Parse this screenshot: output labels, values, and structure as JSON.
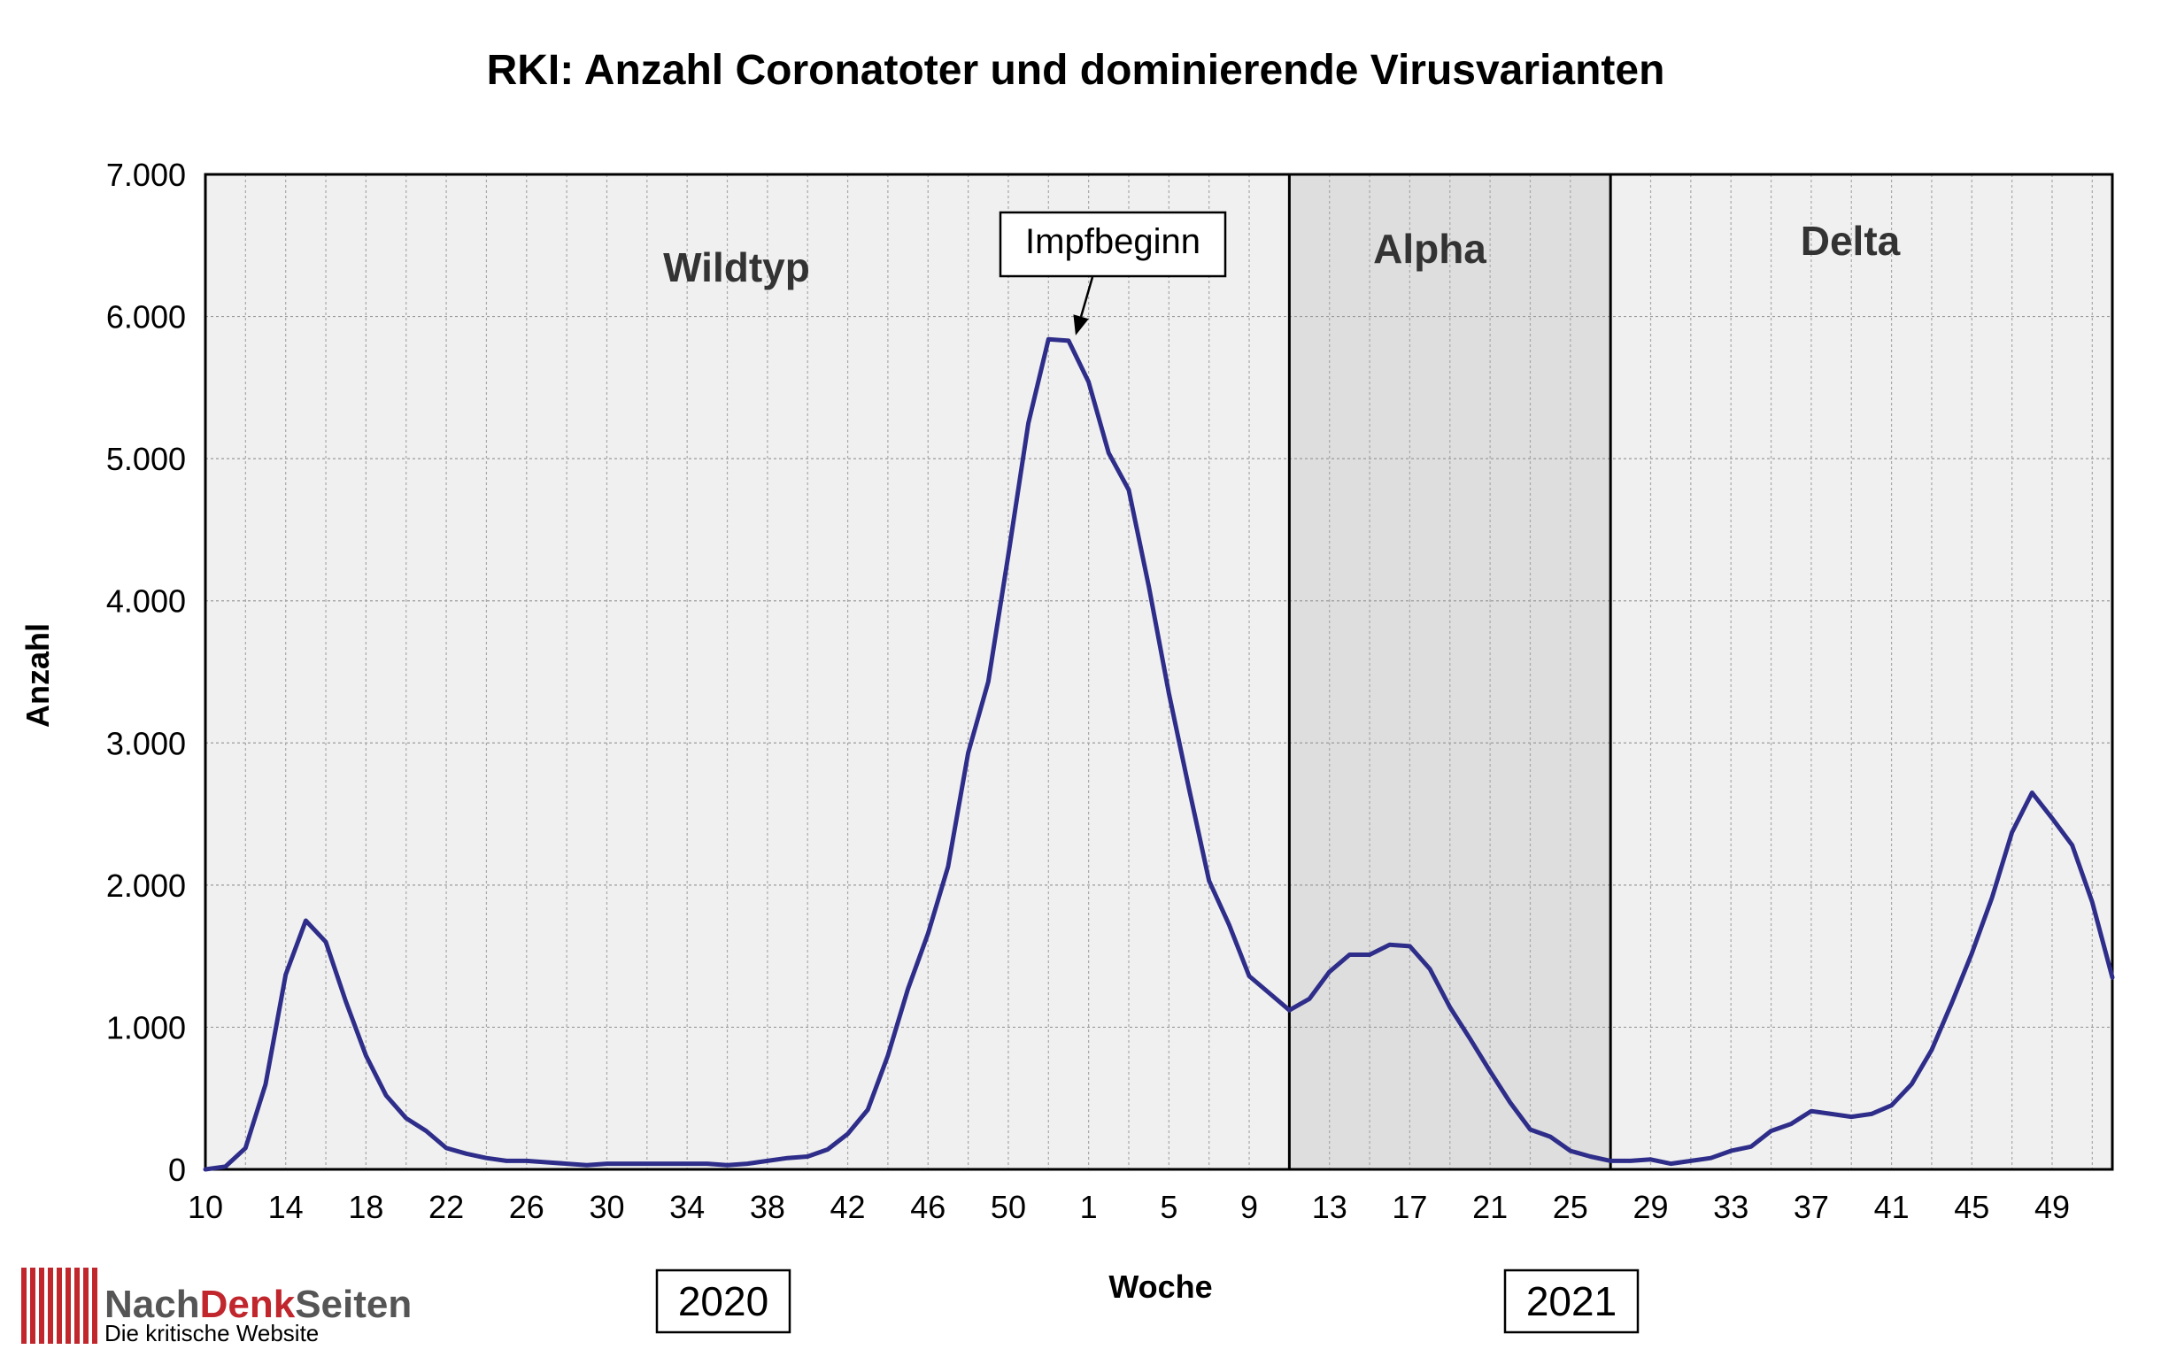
{
  "chart_data": {
    "type": "line",
    "title": "RKI: Anzahl Coronatoter und dominierende Virusvarianten",
    "xlabel": "Woche",
    "ylabel": "Anzahl",
    "ylim": [
      0,
      7000
    ],
    "yticks": [
      0,
      1000,
      2000,
      3000,
      4000,
      5000,
      6000,
      7000
    ],
    "ytick_labels": [
      "0",
      "1.000",
      "2.000",
      "3.000",
      "4.000",
      "5.000",
      "6.000",
      "7.000"
    ],
    "xtick_labels": [
      "10",
      "14",
      "18",
      "22",
      "26",
      "30",
      "34",
      "38",
      "42",
      "46",
      "50",
      "1",
      "5",
      "9",
      "13",
      "17",
      "21",
      "25",
      "29",
      "33",
      "37",
      "41",
      "45",
      "49"
    ],
    "grid": true,
    "line_color": "#2e2e8a",
    "weeks": [
      "2020-10",
      "2020-11",
      "2020-12",
      "2020-13",
      "2020-14",
      "2020-15",
      "2020-16",
      "2020-17",
      "2020-18",
      "2020-19",
      "2020-20",
      "2020-21",
      "2020-22",
      "2020-23",
      "2020-24",
      "2020-25",
      "2020-26",
      "2020-27",
      "2020-28",
      "2020-29",
      "2020-30",
      "2020-31",
      "2020-32",
      "2020-33",
      "2020-34",
      "2020-35",
      "2020-36",
      "2020-37",
      "2020-38",
      "2020-39",
      "2020-40",
      "2020-41",
      "2020-42",
      "2020-43",
      "2020-44",
      "2020-45",
      "2020-46",
      "2020-47",
      "2020-48",
      "2020-49",
      "2020-50",
      "2020-51",
      "2020-52",
      "2020-53",
      "2021-1",
      "2021-2",
      "2021-3",
      "2021-4",
      "2021-5",
      "2021-6",
      "2021-7",
      "2021-8",
      "2021-9",
      "2021-10",
      "2021-11",
      "2021-12",
      "2021-13",
      "2021-14",
      "2021-15",
      "2021-16",
      "2021-17",
      "2021-18",
      "2021-19",
      "2021-20",
      "2021-21",
      "2021-22",
      "2021-23",
      "2021-24",
      "2021-25",
      "2021-26",
      "2021-27",
      "2021-28",
      "2021-29",
      "2021-30",
      "2021-31",
      "2021-32",
      "2021-33",
      "2021-34",
      "2021-35",
      "2021-36",
      "2021-37",
      "2021-38",
      "2021-39",
      "2021-40",
      "2021-41",
      "2021-42",
      "2021-43",
      "2021-44",
      "2021-45",
      "2021-46",
      "2021-47",
      "2021-48",
      "2021-49",
      "2021-50",
      "2021-51",
      "2021-52"
    ],
    "values": [
      0,
      20,
      150,
      600,
      1370,
      1750,
      1600,
      1180,
      800,
      520,
      360,
      270,
      150,
      110,
      80,
      60,
      60,
      50,
      40,
      30,
      40,
      40,
      40,
      40,
      40,
      40,
      30,
      40,
      60,
      80,
      90,
      140,
      250,
      420,
      800,
      1270,
      1660,
      2130,
      2930,
      3430,
      4320,
      5250,
      5840,
      5830,
      5540,
      5040,
      4780,
      4100,
      3350,
      2680,
      2030,
      1720,
      1360,
      1240,
      1120,
      1200,
      1390,
      1510,
      1510,
      1580,
      1570,
      1410,
      1140,
      920,
      690,
      470,
      280,
      230,
      130,
      90,
      60,
      60,
      70,
      40,
      60,
      80,
      130,
      160,
      270,
      320,
      410,
      390,
      370,
      390,
      450,
      600,
      840,
      1170,
      1520,
      1910,
      2370,
      2650,
      2470,
      2280,
      1880,
      1350
    ],
    "regions": [
      {
        "label": "Wildtyp",
        "from": "2020-10",
        "to": "2021-11",
        "fill": "#f0f0f0"
      },
      {
        "label": "Alpha",
        "from": "2021-11",
        "to": "2021-27",
        "fill": "#dedede"
      },
      {
        "label": "Delta",
        "from": "2021-27",
        "to": "2021-52",
        "fill": "#f0f0f0"
      }
    ],
    "annotation": {
      "text": "Impfbeginn",
      "week": "2020-53"
    },
    "year_labels": [
      "2020",
      "2021"
    ]
  },
  "logo": {
    "name_part1": "Nach",
    "name_part2": "Denk",
    "name_part3": "Seiten",
    "tagline": "Die kritische Website",
    "dark_color": "#555555",
    "accent_color": "#c0262c"
  }
}
